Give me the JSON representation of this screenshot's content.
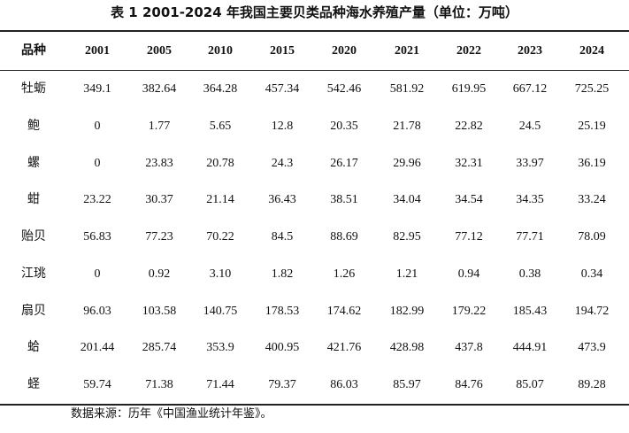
{
  "title": "表 1 2001-2024 年我国主要贝类品种海水养殖产量（单位：万吨）",
  "table": {
    "header": [
      "品种",
      "2001",
      "2005",
      "2010",
      "2015",
      "2020",
      "2021",
      "2022",
      "2023",
      "2024"
    ],
    "rows": [
      [
        "牡蛎",
        "349.1",
        "382.64",
        "364.28",
        "457.34",
        "542.46",
        "581.92",
        "619.95",
        "667.12",
        "725.25"
      ],
      [
        "鲍",
        "0",
        "1.77",
        "5.65",
        "12.8",
        "20.35",
        "21.78",
        "22.82",
        "24.5",
        "25.19"
      ],
      [
        "螺",
        "0",
        "23.83",
        "20.78",
        "24.3",
        "26.17",
        "29.96",
        "32.31",
        "33.97",
        "36.19"
      ],
      [
        "蚶",
        "23.22",
        "30.37",
        "21.14",
        "36.43",
        "38.51",
        "34.04",
        "34.54",
        "34.35",
        "33.24"
      ],
      [
        "贻贝",
        "56.83",
        "77.23",
        "70.22",
        "84.5",
        "88.69",
        "82.95",
        "77.12",
        "77.71",
        "78.09"
      ],
      [
        "江珧",
        "0",
        "0.92",
        "3.10",
        "1.82",
        "1.26",
        "1.21",
        "0.94",
        "0.38",
        "0.34"
      ],
      [
        "扇贝",
        "96.03",
        "103.58",
        "140.75",
        "178.53",
        "174.62",
        "182.99",
        "179.22",
        "185.43",
        "194.72"
      ],
      [
        "蛤",
        "201.44",
        "285.74",
        "353.9",
        "400.95",
        "421.76",
        "428.98",
        "437.8",
        "444.91",
        "473.9"
      ],
      [
        "蛏",
        "59.74",
        "71.38",
        "71.44",
        "79.37",
        "86.03",
        "85.97",
        "84.76",
        "85.07",
        "89.28"
      ]
    ]
  },
  "note": "数据来源：历年《中国渔业统计年鉴》。"
}
